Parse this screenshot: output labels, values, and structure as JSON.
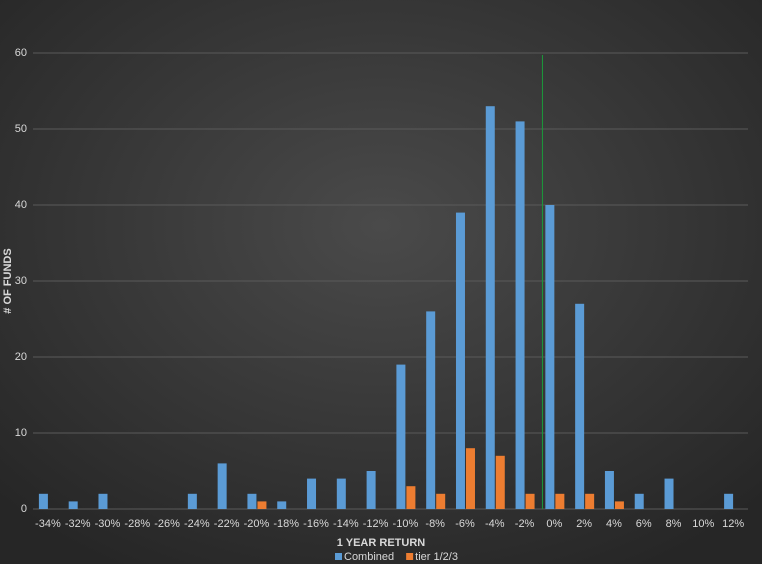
{
  "chart_data": {
    "type": "bar",
    "x_label": "1 YEAR RETURN",
    "y_label": "# OF FUNDS",
    "categories": [
      "-34%",
      "-32%",
      "-30%",
      "-28%",
      "-26%",
      "-24%",
      "-22%",
      "-20%",
      "-18%",
      "-16%",
      "-14%",
      "-12%",
      "-10%",
      "-8%",
      "-6%",
      "-4%",
      "-2%",
      "0%",
      "2%",
      "4%",
      "6%",
      "8%",
      "10%",
      "12%"
    ],
    "series": [
      {
        "name": "Combined",
        "color": "#5b9bd5",
        "values": [
          2,
          1,
          2,
          0,
          0,
          2,
          6,
          2,
          1,
          4,
          4,
          5,
          19,
          26,
          39,
          53,
          51,
          40,
          27,
          5,
          2,
          4,
          0,
          2
        ]
      },
      {
        "name": "tier 1/2/3",
        "color": "#ed7d31",
        "values": [
          0,
          0,
          0,
          0,
          0,
          0,
          0,
          1,
          0,
          0,
          0,
          0,
          3,
          2,
          8,
          7,
          2,
          2,
          2,
          1,
          0,
          0,
          0,
          0
        ]
      }
    ],
    "ylim": [
      0,
      60
    ],
    "yticks": [
      0,
      10,
      20,
      30,
      40,
      50,
      60
    ],
    "grid": true,
    "legend": "bottom",
    "reference_line": {
      "category_index": 16.6,
      "color": "#1a9a3a"
    }
  }
}
